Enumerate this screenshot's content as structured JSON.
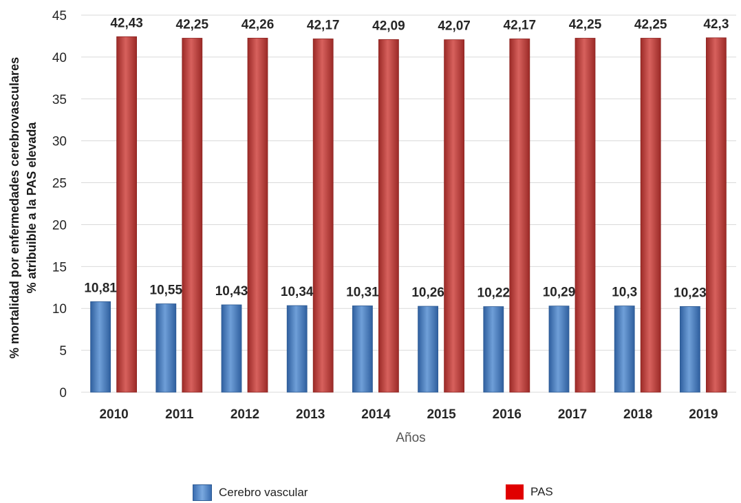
{
  "chart_data": {
    "type": "bar",
    "categories": [
      "2010",
      "2011",
      "2012",
      "2013",
      "2014",
      "2015",
      "2016",
      "2017",
      "2018",
      "2019"
    ],
    "series": [
      {
        "name": "Cerebro vascular",
        "color": "#4f81bd",
        "values": [
          10.81,
          10.55,
          10.43,
          10.34,
          10.31,
          10.26,
          10.22,
          10.29,
          10.3,
          10.23
        ],
        "labels": [
          "10,81",
          "10,55",
          "10,43",
          "10,34",
          "10,31",
          "10,26",
          "10,22",
          "10,29",
          "10,3",
          "10,23"
        ]
      },
      {
        "name": "PAS",
        "color": "#c0504d",
        "values": [
          42.43,
          42.25,
          42.26,
          42.17,
          42.09,
          42.07,
          42.17,
          42.25,
          42.25,
          42.3
        ],
        "labels": [
          "42,43",
          "42,25",
          "42,26",
          "42,17",
          "42,09",
          "42,07",
          "42,17",
          "42,25",
          "42,25",
          "42,3"
        ]
      }
    ],
    "ylabel_line1": "% mortalidad por enfermedades cerebrovasculares",
    "ylabel_line2": "% atribuible a la PAS elevada",
    "xlabel": "Años",
    "ylim": [
      0,
      45
    ],
    "yticks": [
      "0",
      "5",
      "10",
      "15",
      "20",
      "25",
      "30",
      "35",
      "40",
      "45"
    ],
    "grid": true,
    "legend_position": "bottom"
  },
  "legend": {
    "item1": {
      "label": "Cerebro vascular",
      "color": "#4f81bd"
    },
    "item2": {
      "label": "PAS",
      "color": "#e00000"
    }
  }
}
